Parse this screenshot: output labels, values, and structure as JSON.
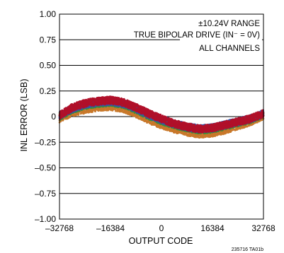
{
  "chart_data": {
    "type": "scatter",
    "xlabel": "OUTPUT CODE",
    "ylabel": "INL ERROR (LSB)",
    "xlim": [
      -32768,
      32768
    ],
    "ylim": [
      -1.0,
      1.0
    ],
    "xticks": [
      "–32768",
      "–16384",
      "0",
      "16384",
      "32768"
    ],
    "xtick_values": [
      -32768,
      -16384,
      0,
      16384,
      32768
    ],
    "yticks": [
      "1.00",
      "0.75",
      "0.50",
      "0.25",
      "0",
      "–0.25",
      "–0.50",
      "–0.75",
      "–1.00"
    ],
    "ytick_values": [
      1.0,
      0.75,
      0.5,
      0.25,
      0,
      -0.25,
      -0.5,
      -0.75,
      -1.0
    ],
    "grid": "horizontal",
    "annotations": [
      "±10.24V RANGE",
      "TRUE BIPOLAR DRIVE (IN⁻ = 0V)",
      "ALL CHANNELS"
    ],
    "figure_id": "235716 TA01b",
    "series": [
      {
        "color": "#c8782a",
        "x": [
          -32768,
          -28672,
          -24576,
          -20480,
          -16384,
          -12288,
          -8192,
          -4096,
          0,
          4096,
          8192,
          12288,
          16384,
          20480,
          24576,
          28672,
          32768
        ],
        "y": [
          -0.02,
          0.04,
          0.07,
          0.09,
          0.1,
          0.08,
          0.03,
          -0.03,
          -0.08,
          -0.12,
          -0.15,
          -0.17,
          -0.16,
          -0.13,
          -0.09,
          -0.05,
          0.01
        ]
      },
      {
        "color": "#3a8f3a",
        "x": [
          -32768,
          -28672,
          -24576,
          -20480,
          -16384,
          -12288,
          -8192,
          -4096,
          0,
          4096,
          8192,
          12288,
          16384,
          20480,
          24576,
          28672,
          32768
        ],
        "y": [
          0.0,
          0.07,
          0.11,
          0.13,
          0.14,
          0.12,
          0.07,
          0.01,
          -0.04,
          -0.08,
          -0.11,
          -0.13,
          -0.12,
          -0.09,
          -0.06,
          -0.03,
          0.02
        ]
      },
      {
        "color": "#3355aa",
        "x": [
          -32768,
          -28672,
          -24576,
          -20480,
          -16384,
          -12288,
          -8192,
          -4096,
          0,
          4096,
          8192,
          12288,
          16384,
          20480,
          24576,
          28672,
          32768
        ],
        "y": [
          0.01,
          0.08,
          0.12,
          0.14,
          0.15,
          0.13,
          0.08,
          0.02,
          -0.03,
          -0.07,
          -0.1,
          -0.12,
          -0.11,
          -0.08,
          -0.05,
          -0.02,
          0.03
        ]
      },
      {
        "color": "#b0102a",
        "x": [
          -32768,
          -28672,
          -24576,
          -20480,
          -16384,
          -12288,
          -8192,
          -4096,
          0,
          4096,
          8192,
          12288,
          16384,
          20480,
          24576,
          28672,
          32768
        ],
        "y": [
          0.01,
          0.09,
          0.13,
          0.15,
          0.16,
          0.14,
          0.09,
          0.03,
          -0.02,
          -0.07,
          -0.1,
          -0.12,
          -0.11,
          -0.08,
          -0.05,
          -0.02,
          0.03
        ]
      }
    ]
  }
}
